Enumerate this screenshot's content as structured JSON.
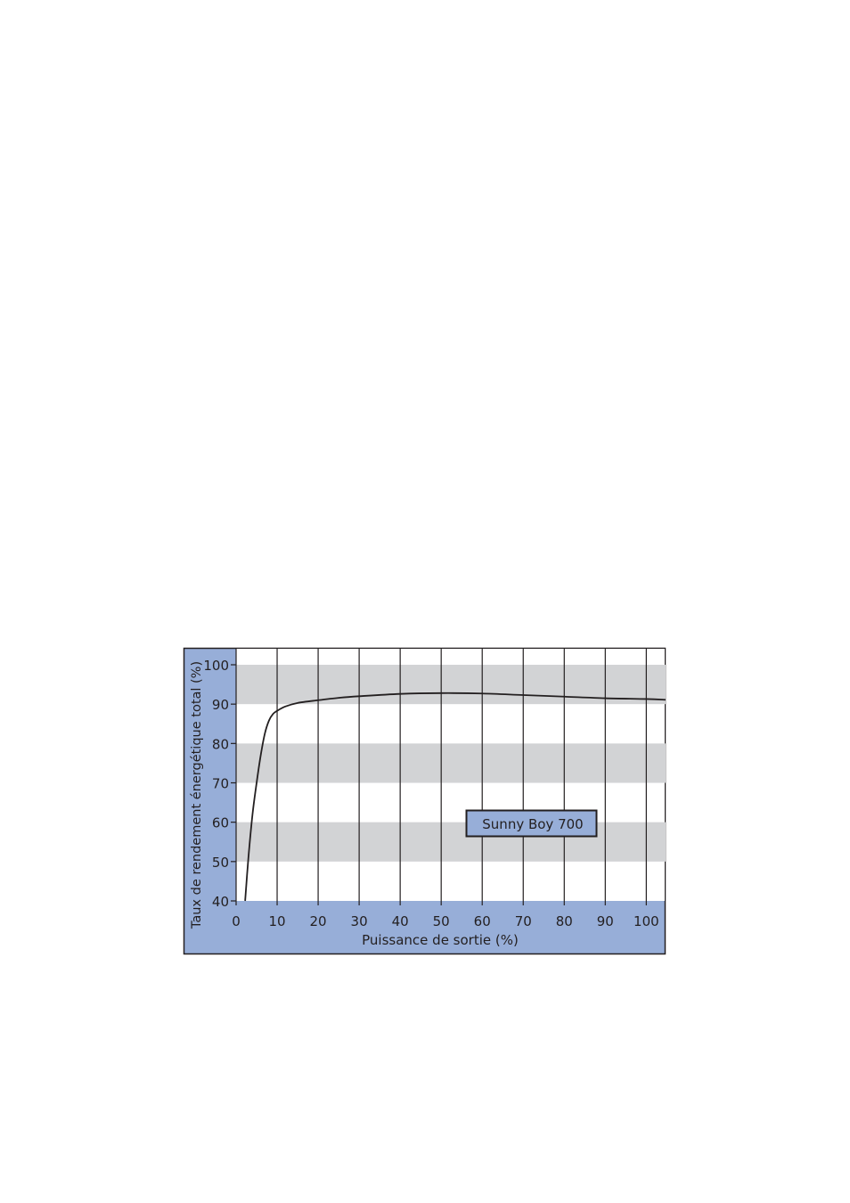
{
  "chart_data": {
    "type": "line",
    "title": "",
    "xlabel": "Puissance de sortie (%)",
    "ylabel": "Taux de rendement énergétique total (%)",
    "xlim": [
      0,
      104.7
    ],
    "ylim": [
      40,
      100
    ],
    "xticks": [
      "0",
      "10",
      "20",
      "30",
      "40",
      "50",
      "60",
      "70",
      "80",
      "90",
      "100"
    ],
    "yticks": [
      "40",
      "50",
      "60",
      "70",
      "80",
      "90",
      "100"
    ],
    "grid": "vertical lines every 10; alternating gray horizontal bands 50-60, 70-80, 90-100",
    "legend": {
      "label": "Sunny Boy 700",
      "placement": "center-right"
    },
    "series": [
      {
        "name": "Sunny Boy 700",
        "x": [
          2.2,
          3,
          4,
          5,
          6,
          7,
          8,
          9,
          10,
          12,
          15,
          20,
          25,
          30,
          40,
          50,
          60,
          70,
          80,
          90,
          100,
          104.7
        ],
        "y": [
          40,
          51,
          62,
          70,
          77,
          82.5,
          85.8,
          87.5,
          88.3,
          89.4,
          90.3,
          91.0,
          91.6,
          92.0,
          92.6,
          92.8,
          92.7,
          92.3,
          91.9,
          91.5,
          91.3,
          91.1
        ]
      }
    ],
    "colors": {
      "frame": "#97aed8",
      "band": "#d2d3d5",
      "line": "#231f20"
    }
  }
}
